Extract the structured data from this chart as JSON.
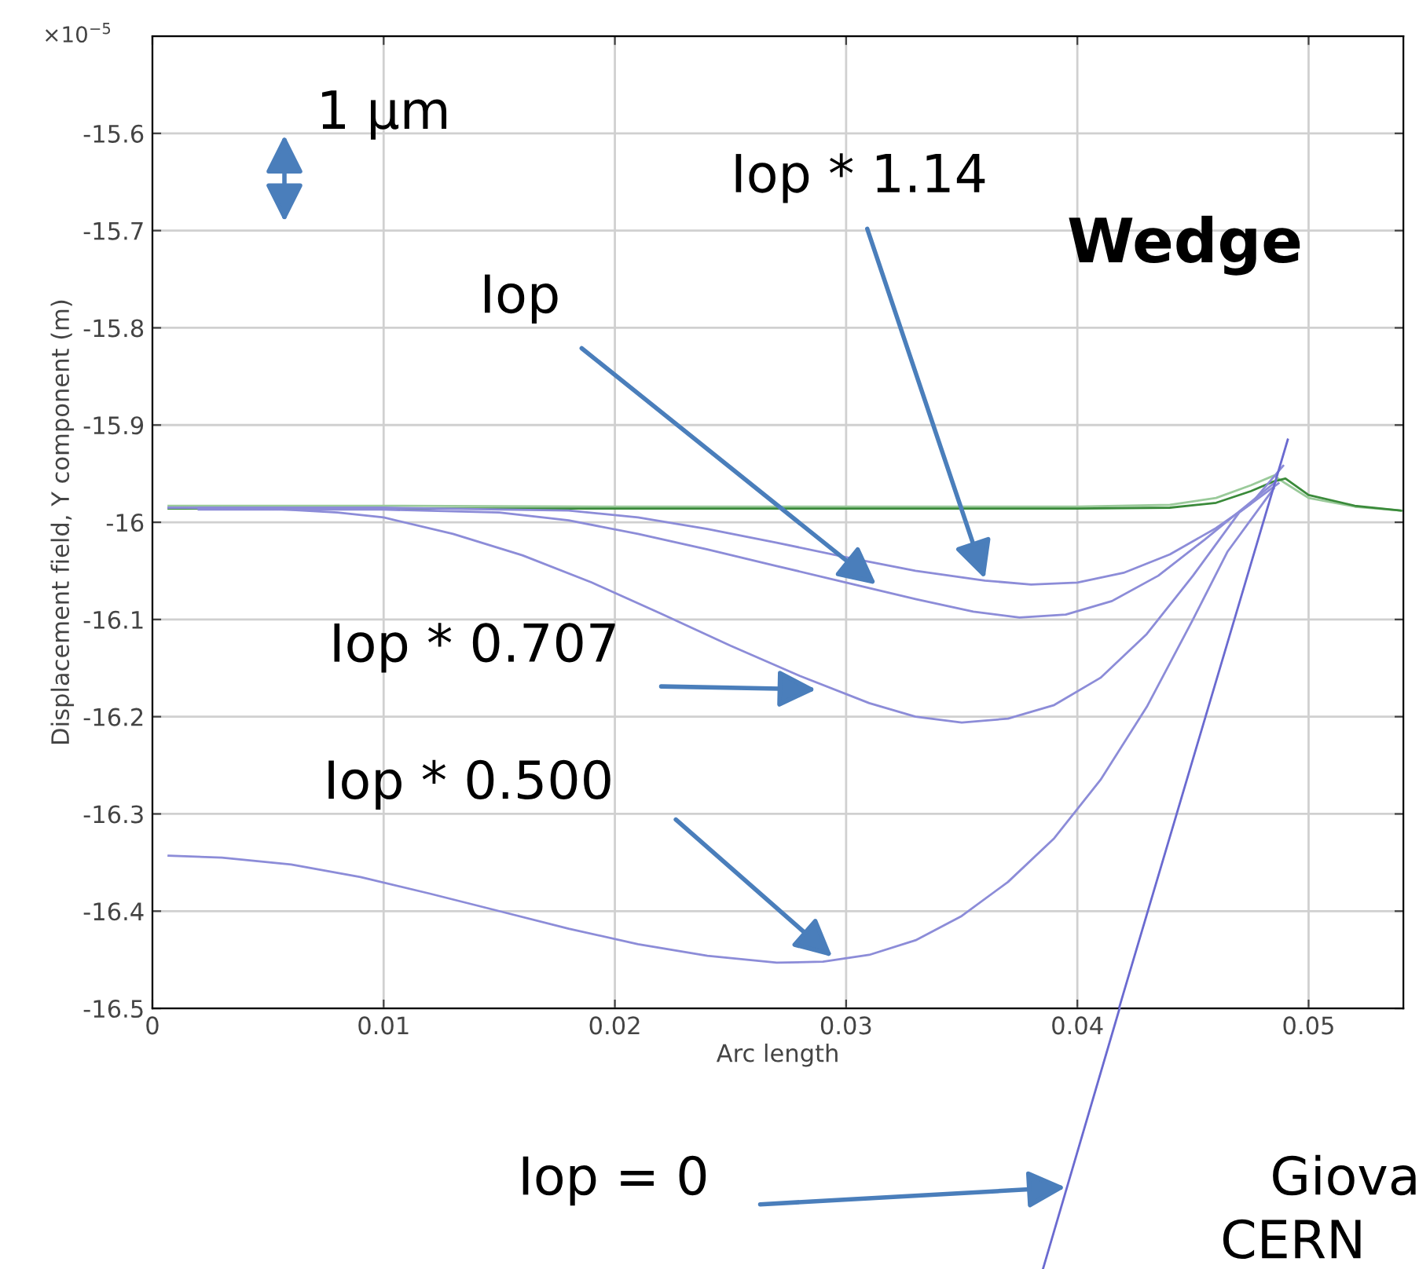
{
  "chart_data": {
    "type": "line",
    "xlabel": "Arc length",
    "ylabel": "Displacement field, Y component (m)",
    "xlim": [
      0,
      0.0541
    ],
    "ylim": [
      -16.5,
      -15.5
    ],
    "xticks": [
      0,
      0.01,
      0.02,
      0.03,
      0.04,
      0.05
    ],
    "yticks": [
      -16.5,
      -16.4,
      -16.3,
      -16.2,
      -16.1,
      -16,
      -15.9,
      -15.8,
      -15.7,
      -15.6
    ],
    "grid": true,
    "legend": false,
    "marker": "none",
    "line_style": "solid",
    "series": [
      {
        "color": "#9aca9a",
        "x": [
          0.0007,
          0.01,
          0.02,
          0.03,
          0.04,
          0.044,
          0.046,
          0.0475,
          0.0485,
          0.049,
          0.05,
          0.052,
          0.054
        ],
        "values": [
          -15.983,
          -15.983,
          -15.984,
          -15.984,
          -15.984,
          -15.982,
          -15.975,
          -15.962,
          -15.952,
          -15.96,
          -15.975,
          -15.984,
          -15.988
        ]
      },
      {
        "color": "#3a8a3a",
        "x": [
          0.0007,
          0.01,
          0.02,
          0.03,
          0.04,
          0.044,
          0.046,
          0.0475,
          0.0485,
          0.049,
          0.05,
          0.052,
          0.054
        ],
        "values": [
          -15.986,
          -15.986,
          -15.986,
          -15.986,
          -15.986,
          -15.985,
          -15.98,
          -15.968,
          -15.958,
          -15.955,
          -15.972,
          -15.983,
          -15.988
        ]
      },
      {
        "color": "#8c8cd8",
        "x": [
          0.0007,
          0.01,
          0.018,
          0.021,
          0.024,
          0.027,
          0.03,
          0.033,
          0.036,
          0.038,
          0.04,
          0.042,
          0.044,
          0.046,
          0.0475,
          0.0489
        ],
        "values": [
          -15.985,
          -15.985,
          -15.988,
          -15.995,
          -16.007,
          -16.021,
          -16.036,
          -16.05,
          -16.06,
          -16.064,
          -16.062,
          -16.052,
          -16.033,
          -16.006,
          -15.981,
          -15.942
        ]
      },
      {
        "color": "#8c8cd8",
        "x": [
          0.002,
          0.01,
          0.015,
          0.018,
          0.021,
          0.024,
          0.027,
          0.03,
          0.033,
          0.0355,
          0.0375,
          0.0395,
          0.0415,
          0.0435,
          0.0455,
          0.0472,
          0.0486
        ],
        "values": [
          -15.987,
          -15.987,
          -15.99,
          -15.998,
          -16.012,
          -16.028,
          -16.045,
          -16.062,
          -16.079,
          -16.092,
          -16.098,
          -16.095,
          -16.081,
          -16.055,
          -16.018,
          -15.985,
          -15.958
        ]
      },
      {
        "color": "#8c8cd8",
        "x": [
          0.0007,
          0.005,
          0.008,
          0.01,
          0.013,
          0.016,
          0.019,
          0.022,
          0.025,
          0.028,
          0.031,
          0.033,
          0.035,
          0.037,
          0.039,
          0.041,
          0.043,
          0.045,
          0.047,
          0.0487
        ],
        "values": [
          -15.985,
          -15.986,
          -15.99,
          -15.995,
          -16.012,
          -16.034,
          -16.062,
          -16.094,
          -16.127,
          -16.158,
          -16.186,
          -16.2,
          -16.206,
          -16.202,
          -16.188,
          -16.16,
          -16.115,
          -16.055,
          -15.99,
          -15.96
        ]
      },
      {
        "color": "#8c8cd8",
        "x": [
          0.0007,
          0.003,
          0.006,
          0.009,
          0.012,
          0.015,
          0.018,
          0.021,
          0.024,
          0.027,
          0.029,
          0.031,
          0.033,
          0.035,
          0.037,
          0.039,
          0.041,
          0.043,
          0.045,
          0.0465,
          0.0485
        ],
        "values": [
          -16.343,
          -16.345,
          -16.352,
          -16.365,
          -16.382,
          -16.4,
          -16.418,
          -16.434,
          -16.446,
          -16.453,
          -16.452,
          -16.445,
          -16.43,
          -16.405,
          -16.37,
          -16.325,
          -16.265,
          -16.19,
          -16.1,
          -16.03,
          -15.965
        ]
      },
      {
        "color": "#6a6ad0",
        "x": [
          0.0418,
          0.0491
        ],
        "values": [
          -16.5,
          -15.915
        ]
      }
    ],
    "annotations": [
      "1 μm",
      {
        "text": "Iop * 1.14",
        "x": 0.036,
        "y": -16.058
      },
      {
        "text": "Iop",
        "x": 0.0313,
        "y": -16.064
      },
      {
        "text": "Iop * 0.707",
        "x": 0.0287,
        "y": -16.172
      },
      {
        "text": "Iop * 0.500",
        "x": 0.0294,
        "y": -16.447
      },
      "Iop = 0",
      "Wedge",
      "×10$^{−5}$",
      "Giova",
      "CERN"
    ]
  }
}
